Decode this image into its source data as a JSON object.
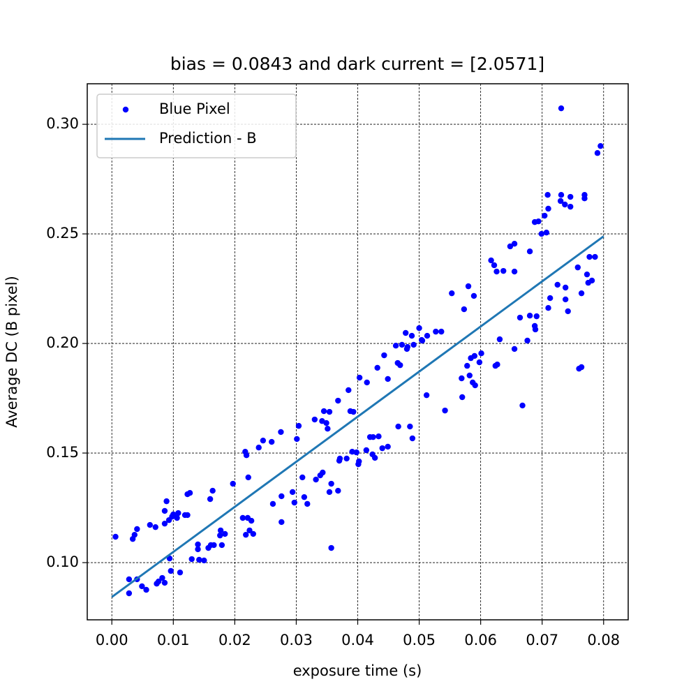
{
  "chart_data": {
    "type": "scatter",
    "title": "bias = 0.0843 and dark current = [2.0571]",
    "xlabel": "exposure time (s)",
    "ylabel": "Average DC (B pixel)",
    "xlim": [
      -0.004,
      0.084
    ],
    "ylim": [
      0.0739,
      0.3185
    ],
    "xticks": [
      {
        "value": 0,
        "label": "0.00"
      },
      0.01,
      0.02,
      0.03,
      0.04,
      0.05,
      0.06,
      0.07,
      0.08
    ],
    "yticks": [
      {
        "value": 0.1,
        "label": "0.10"
      },
      0.15,
      {
        "value": 0.2,
        "label": "0.20"
      },
      0.25,
      {
        "value": 0.3,
        "label": "0.30"
      }
    ],
    "grid": true,
    "legend": "upper left",
    "series": [
      {
        "name": "Blue Pixel",
        "color": "#0000ff",
        "type": "scatter",
        "x": [
          0.0006,
          0.0028,
          0.0028,
          0.0034,
          0.0037,
          0.0041,
          0.0041,
          0.0049,
          0.0056,
          0.0062,
          0.0071,
          0.0073,
          0.0076,
          0.0082,
          0.0086,
          0.0086,
          0.0089,
          0.0086,
          0.0093,
          0.0094,
          0.0096,
          0.0098,
          0.01,
          0.0106,
          0.0108,
          0.0111,
          0.0119,
          0.0123,
          0.0127,
          0.0123,
          0.013,
          0.014,
          0.014,
          0.0142,
          0.015,
          0.0157,
          0.0161,
          0.016,
          0.0164,
          0.0166,
          0.0176,
          0.0177,
          0.0179,
          0.0184,
          0.0197,
          0.0213,
          0.0217,
          0.0219,
          0.0218,
          0.0221,
          0.0222,
          0.0224,
          0.0227,
          0.023,
          0.0239,
          0.0246,
          0.026,
          0.0262,
          0.0275,
          0.0276,
          0.0276,
          0.0294,
          0.0297,
          0.0301,
          0.0304,
          0.031,
          0.0313,
          0.0318,
          0.033,
          0.0332,
          0.0339,
          0.0342,
          0.0345,
          0.0343,
          0.0349,
          0.0351,
          0.0354,
          0.0354,
          0.0357,
          0.0357,
          0.0368,
          0.0368,
          0.0371,
          0.037,
          0.0382,
          0.0385,
          0.0388,
          0.0391,
          0.0393,
          0.0398,
          0.0401,
          0.0402,
          0.0403,
          0.0414,
          0.0415,
          0.042,
          0.0424,
          0.0425,
          0.0428,
          0.0432,
          0.0434,
          0.044,
          0.0443,
          0.0449,
          0.0449,
          0.0462,
          0.0465,
          0.0466,
          0.0469,
          0.0472,
          0.0478,
          0.048,
          0.0481,
          0.0485,
          0.0488,
          0.0489,
          0.0491,
          0.05,
          0.0504,
          0.0505,
          0.0512,
          0.0513,
          0.0527,
          0.0536,
          0.0542,
          0.0553,
          0.0569,
          0.057,
          0.0573,
          0.0578,
          0.058,
          0.0582,
          0.0584,
          0.0587,
          0.0589,
          0.059,
          0.0591,
          0.0598,
          0.0601,
          0.0617,
          0.0622,
          0.0624,
          0.0626,
          0.0627,
          0.0631,
          0.0637,
          0.0648,
          0.0655,
          0.0655,
          0.0655,
          0.0664,
          0.0668,
          0.0676,
          0.068,
          0.068,
          0.0688,
          0.0688,
          0.0689,
          0.0691,
          0.0694,
          0.0699,
          0.0704,
          0.0707,
          0.0709,
          0.071,
          0.071,
          0.0713,
          0.0725,
          0.073,
          0.0731,
          0.0731,
          0.0737,
          0.0738,
          0.0738,
          0.0742,
          0.0746,
          0.0746,
          0.0758,
          0.076,
          0.0764,
          0.0764,
          0.0769,
          0.0769,
          0.0773,
          0.0775,
          0.0777,
          0.0781,
          0.0786,
          0.079,
          0.0795
        ],
        "values": [
          0.1118,
          0.0924,
          0.086,
          0.1108,
          0.1127,
          0.1153,
          0.0924,
          0.0892,
          0.0876,
          0.1172,
          0.1162,
          0.0904,
          0.0914,
          0.093,
          0.0908,
          0.1178,
          0.128,
          0.1236,
          0.1194,
          0.1019,
          0.0962,
          0.121,
          0.122,
          0.1204,
          0.1226,
          0.0955,
          0.1217,
          0.1312,
          0.1318,
          0.1217,
          0.1016,
          0.1083,
          0.1061,
          0.1013,
          0.101,
          0.1067,
          0.108,
          0.129,
          0.1328,
          0.108,
          0.1124,
          0.1147,
          0.108,
          0.1131,
          0.136,
          0.1204,
          0.1506,
          0.149,
          0.1127,
          0.1204,
          0.1389,
          0.1147,
          0.1191,
          0.1131,
          0.1525,
          0.1557,
          0.1551,
          0.1268,
          0.1596,
          0.1303,
          0.1185,
          0.1322,
          0.1274,
          0.1564,
          0.1624,
          0.1389,
          0.1299,
          0.1268,
          0.1653,
          0.1379,
          0.1398,
          0.1646,
          0.1691,
          0.1411,
          0.1637,
          0.1611,
          0.1688,
          0.1322,
          0.136,
          0.1067,
          0.1328,
          0.1739,
          0.1475,
          0.1465,
          0.1475,
          0.1787,
          0.1691,
          0.1506,
          0.1688,
          0.1503,
          0.1449,
          0.1462,
          0.1844,
          0.1513,
          0.1822,
          0.1573,
          0.1494,
          0.1573,
          0.1478,
          0.1889,
          0.1576,
          0.1522,
          0.1946,
          0.1838,
          0.1529,
          0.199,
          0.1911,
          0.1621,
          0.1901,
          0.1994,
          0.2048,
          0.1975,
          0.1984,
          0.1621,
          0.2035,
          0.1567,
          0.1994,
          0.207,
          0.2016,
          0.2013,
          0.1764,
          0.2035,
          0.2054,
          0.2054,
          0.1694,
          0.2229,
          0.1841,
          0.1755,
          0.2156,
          0.1898,
          0.2261,
          0.1854,
          0.1933,
          0.1822,
          0.2217,
          0.1943,
          0.1809,
          0.1914,
          0.1955,
          0.2379,
          0.2357,
          0.1898,
          0.2328,
          0.1904,
          0.2019,
          0.2331,
          0.2443,
          0.2455,
          0.2328,
          0.1975,
          0.2118,
          0.1717,
          0.2013,
          0.242,
          0.2127,
          0.2554,
          0.208,
          0.2064,
          0.2124,
          0.2557,
          0.25,
          0.2583,
          0.2506,
          0.2678,
          0.2615,
          0.2162,
          0.2207,
          0.2268,
          0.265,
          0.3073,
          0.2678,
          0.2634,
          0.2255,
          0.2201,
          0.2147,
          0.2669,
          0.2624,
          0.2347,
          0.1885,
          0.1892,
          0.2229,
          0.2662,
          0.2678,
          0.2315,
          0.2277,
          0.2395,
          0.2287,
          0.2395,
          0.2869,
          0.2901
        ]
      },
      {
        "name": "Prediction - B",
        "color": "#1f77b4",
        "type": "line",
        "x": [
          0,
          0.08
        ],
        "values": [
          0.0843,
          0.2489
        ]
      }
    ]
  }
}
